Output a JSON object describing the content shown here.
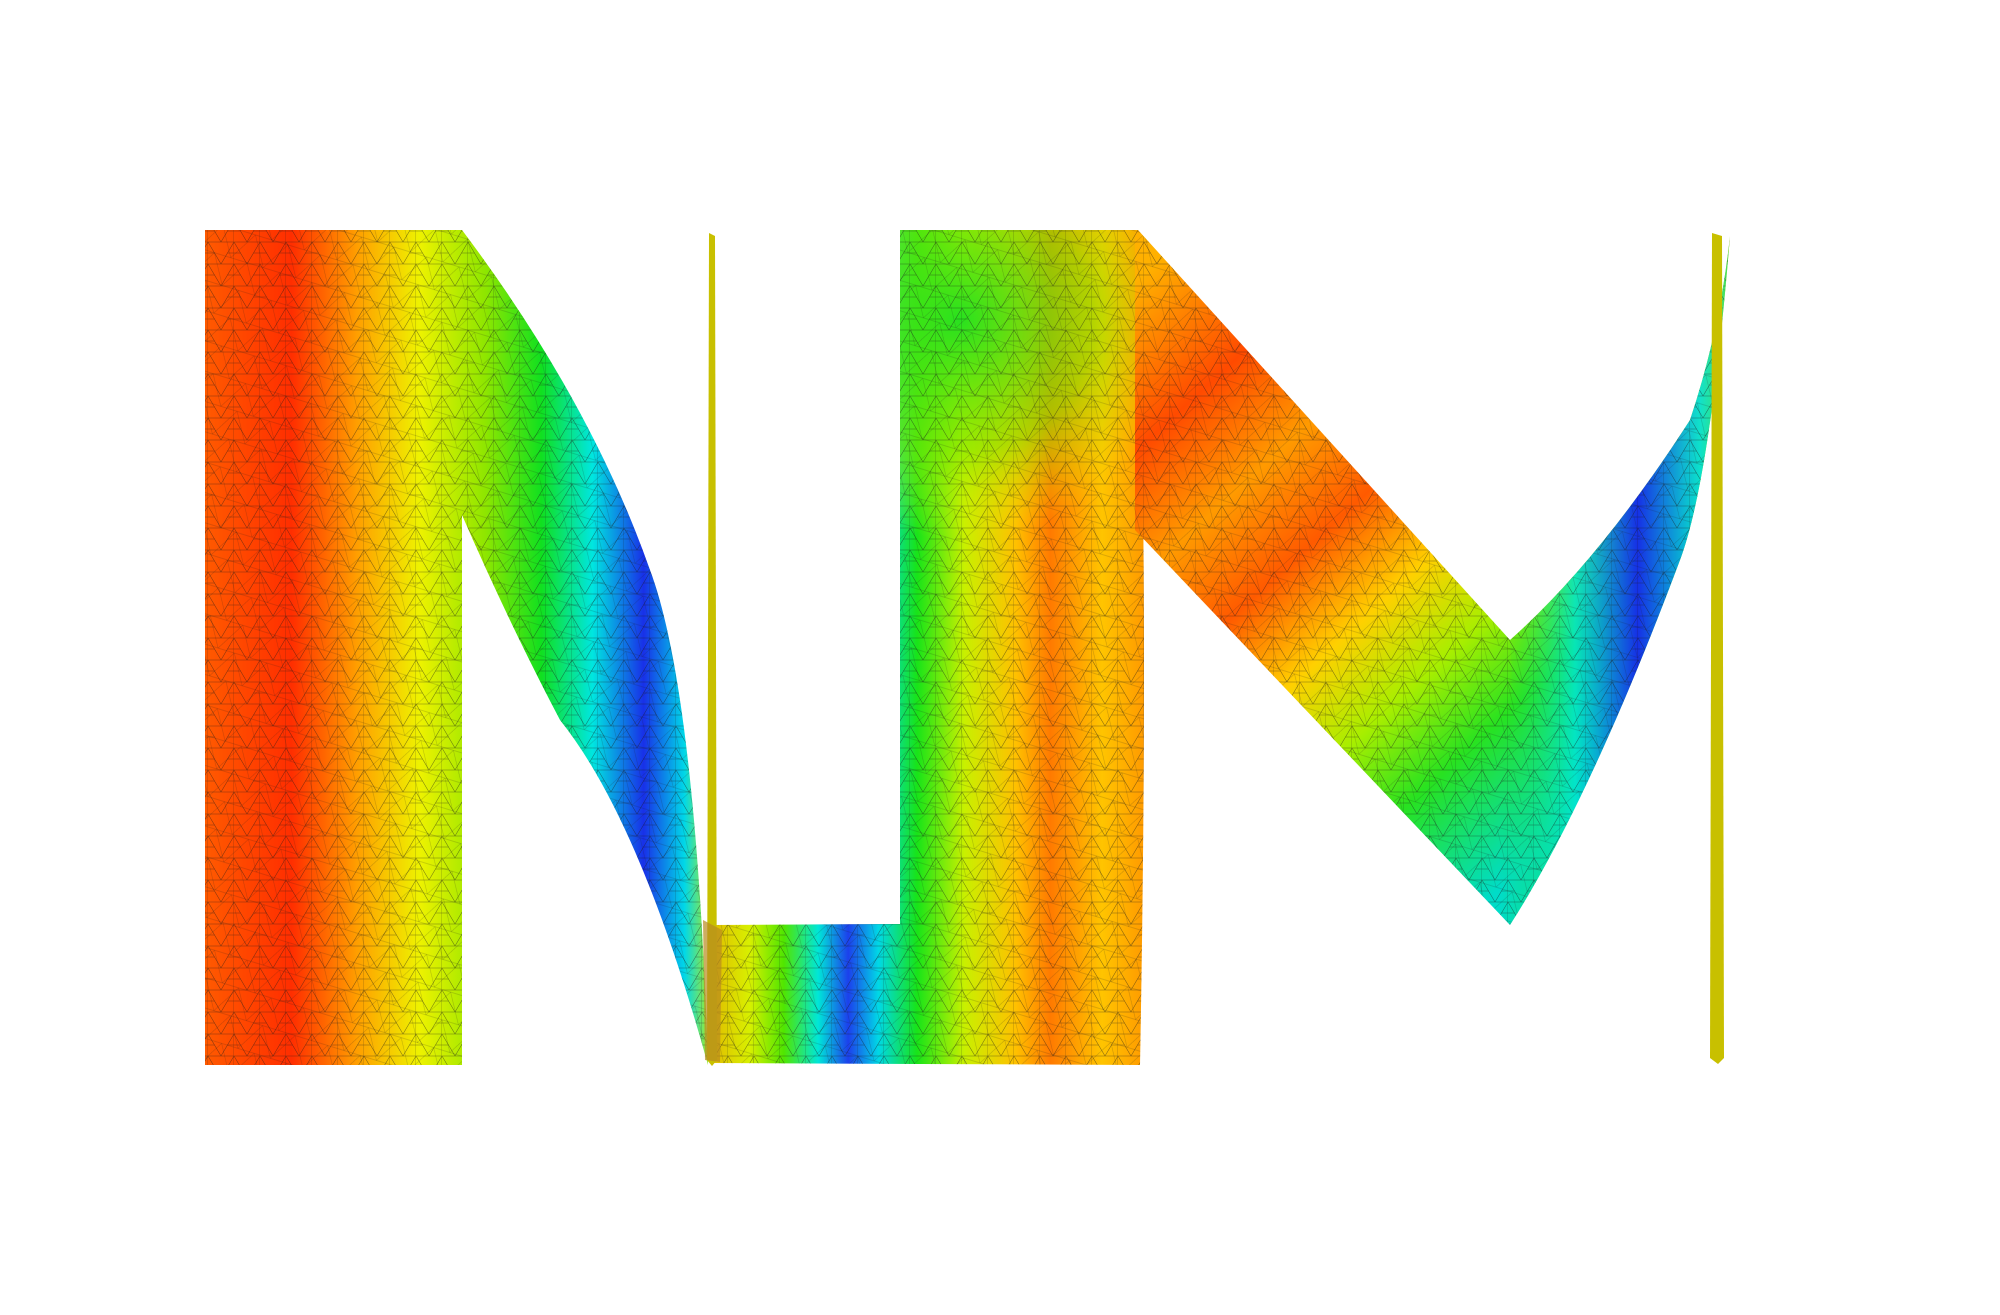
{
  "figure": {
    "subject": "triangulated-mesh-letters",
    "background_color": "#ffffff",
    "mesh_line_color": "#1a1a1a",
    "colormap": [
      "#0a1ee0",
      "#00e8ee",
      "#00e61a",
      "#e8f000",
      "#ffa500",
      "#ff2a00"
    ],
    "strip_colors": [
      "#3a2a12",
      "#8a5a1e",
      "#c8c000"
    ],
    "shapes": [
      {
        "id": "letter-n",
        "kind": "mesh-letter"
      },
      {
        "id": "letter-u",
        "kind": "mesh-letter"
      },
      {
        "id": "letter-m",
        "kind": "mesh-letter"
      },
      {
        "id": "strip-left",
        "kind": "thin-boundary-strip"
      },
      {
        "id": "strip-right",
        "kind": "thin-boundary-strip"
      }
    ]
  }
}
